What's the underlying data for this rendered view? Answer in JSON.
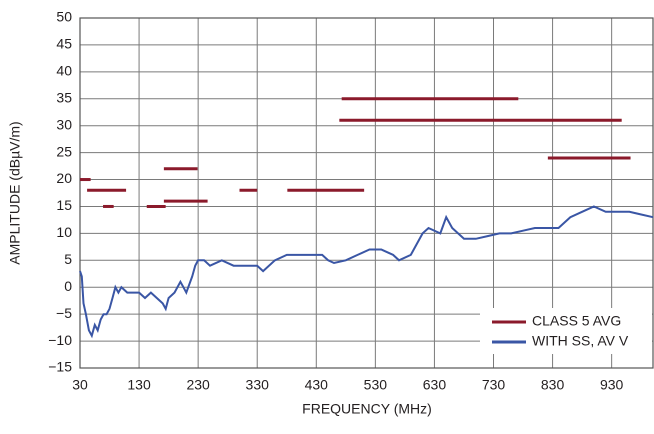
{
  "chart_data": {
    "type": "line",
    "xlabel": "FREQUENCY (MHz)",
    "ylabel": "AMPLITUDE (dBµV/m)",
    "xlim": [
      30,
      1000
    ],
    "ylim": [
      -15,
      50
    ],
    "xticks": [
      30,
      130,
      230,
      330,
      430,
      530,
      630,
      730,
      830,
      930
    ],
    "yticks": [
      {
        "value": -15,
        "label": "−15"
      },
      {
        "value": -10,
        "label": "−10"
      },
      {
        "value": -5,
        "label": "−5"
      },
      0,
      5,
      10,
      15,
      20,
      25,
      30,
      35,
      40,
      45,
      50
    ],
    "grid": true,
    "legend": "lower right",
    "series": [
      {
        "name": "CLASS 5 AVG",
        "color": "#8b1a2b",
        "segments": [
          {
            "x": [
              30,
              48
            ],
            "y": 20
          },
          {
            "x": [
              42,
              108
            ],
            "y": 18
          },
          {
            "x": [
              69,
              87
            ],
            "y": 15
          },
          {
            "x": [
              143,
              175
            ],
            "y": 15
          },
          {
            "x": [
              172,
              246
            ],
            "y": 16
          },
          {
            "x": [
              172,
              229
            ],
            "y": 22
          },
          {
            "x": [
              300,
              330
            ],
            "y": 18
          },
          {
            "x": [
              381,
              511
            ],
            "y": 18
          },
          {
            "x": [
              473,
              772
            ],
            "y": 35
          },
          {
            "x": [
              469,
              947
            ],
            "y": 31
          },
          {
            "x": [
              822,
              962
            ],
            "y": 24
          }
        ]
      },
      {
        "name": "WITH SS, AV V",
        "color": "#3a56a5",
        "x": [
          30,
          33,
          36,
          40,
          45,
          50,
          55,
          60,
          65,
          70,
          75,
          80,
          85,
          90,
          95,
          100,
          110,
          120,
          130,
          140,
          150,
          160,
          170,
          175,
          180,
          190,
          200,
          205,
          210,
          220,
          225,
          230,
          240,
          250,
          270,
          290,
          310,
          330,
          340,
          360,
          380,
          400,
          420,
          440,
          450,
          460,
          480,
          500,
          520,
          540,
          560,
          570,
          590,
          610,
          620,
          640,
          650,
          660,
          680,
          700,
          720,
          740,
          760,
          780,
          800,
          820,
          840,
          860,
          880,
          900,
          920,
          940,
          960,
          980,
          1000
        ],
        "values": [
          3,
          2,
          -3,
          -5,
          -8,
          -9,
          -7,
          -8,
          -6,
          -5,
          -5,
          -4,
          -2,
          0,
          -1,
          0,
          -1,
          -1,
          -1,
          -2,
          -1,
          -2,
          -3,
          -4,
          -2,
          -1,
          1,
          0,
          -1,
          2,
          4,
          5,
          5,
          4,
          5,
          4,
          4,
          4,
          3,
          5,
          6,
          6,
          6,
          6,
          5,
          4.5,
          5,
          6,
          7,
          7,
          6,
          5,
          6,
          10,
          11,
          10,
          13,
          11,
          9,
          9,
          9.5,
          10,
          10,
          10.5,
          11,
          11,
          11,
          13,
          14,
          15,
          14,
          14,
          14,
          13.5,
          13
        ]
      }
    ]
  }
}
